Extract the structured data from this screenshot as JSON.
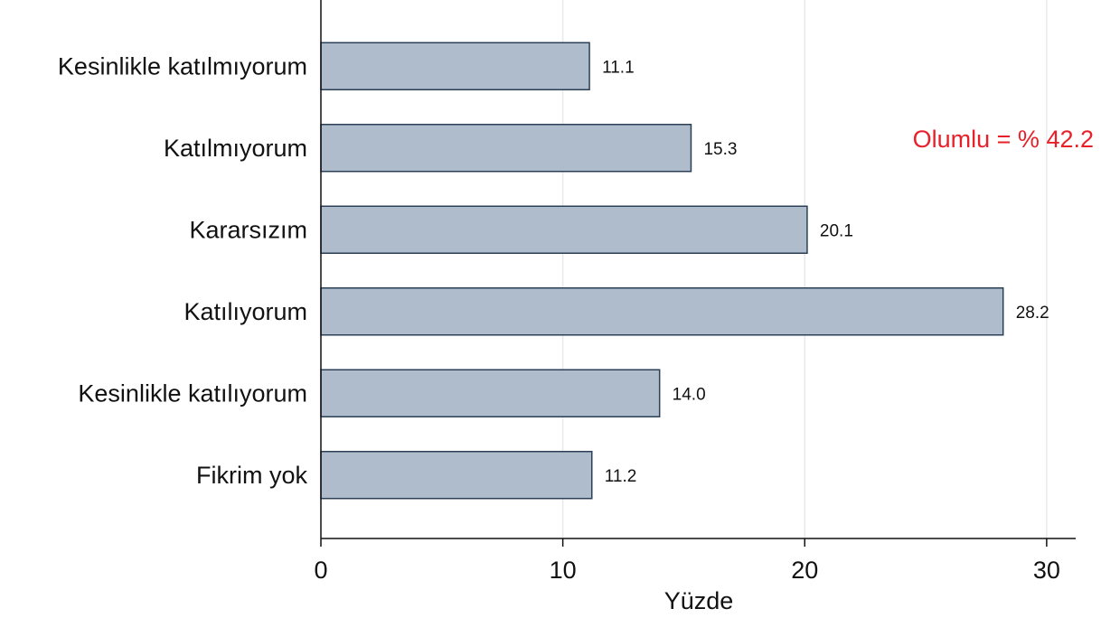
{
  "chart_data": {
    "type": "bar",
    "orientation": "horizontal",
    "categories": [
      "Kesinlikle katılmıyorum",
      "Katılmıyorum",
      "Kararsızım",
      "Katılıyorum",
      "Kesinlikle katılıyorum",
      "Fikrim yok"
    ],
    "values": [
      11.1,
      15.3,
      20.1,
      28.2,
      14.0,
      11.2
    ],
    "value_labels": [
      "11.1",
      "15.3",
      "20.1",
      "28.2",
      "14.0",
      "11.2"
    ],
    "xlabel": "Yüzde",
    "xlim": [
      0,
      31.2
    ],
    "xticks": [
      0,
      10,
      20,
      30
    ],
    "xtick_labels": [
      "0",
      "10",
      "20",
      "30"
    ],
    "grid": "vertical",
    "annotation": "Olumlu = % 42.2",
    "colors": {
      "bar_fill": "#aebccc",
      "bar_stroke": "#2b3f57",
      "grid": "#e6eaee",
      "annotation": "#e8202a"
    }
  }
}
